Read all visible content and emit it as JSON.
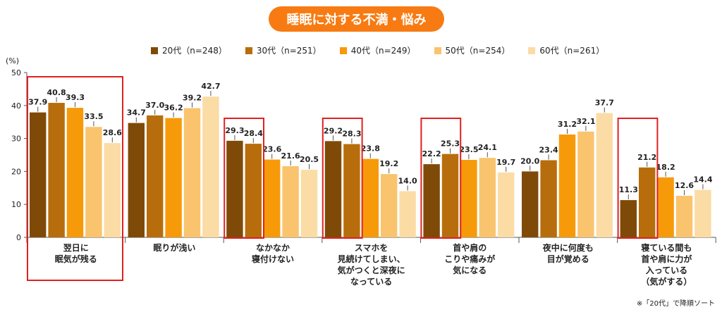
{
  "header": {
    "title": "睡眠に対する不満・悩み"
  },
  "footnote": "※「20代」で降順ソート",
  "chart_data": {
    "type": "bar",
    "title": "睡眠に対する不満・悩み",
    "y_unit": "(%)",
    "ylim": [
      0,
      50
    ],
    "yticks": [
      0,
      10,
      20,
      30,
      40,
      50
    ],
    "grid": false,
    "legend_position": "top",
    "categories": [
      [
        "翌日に",
        "眠気が残る"
      ],
      [
        "眠りが浅い"
      ],
      [
        "なかなか",
        "寝付けない"
      ],
      [
        "スマホを",
        "見続けてしまい、",
        "気がつくと深夜に",
        "なっている"
      ],
      [
        "首や肩の",
        "こりや痛みが",
        "気になる"
      ],
      [
        "夜中に何度も",
        "目が覚める"
      ],
      [
        "寝ている間も",
        "首や肩に力が",
        "入っている",
        "（気がする）"
      ]
    ],
    "series": [
      {
        "name": "20代（n=248）",
        "color": "#7f4a08",
        "values": [
          37.9,
          34.7,
          29.3,
          29.2,
          22.2,
          20.0,
          11.3
        ]
      },
      {
        "name": "30代（n=251）",
        "color": "#b86d0c",
        "values": [
          40.8,
          37.0,
          28.4,
          28.3,
          25.3,
          23.4,
          21.2
        ]
      },
      {
        "name": "40代（n=249）",
        "color": "#f79a0a",
        "values": [
          39.3,
          36.2,
          23.6,
          23.8,
          23.5,
          31.2,
          18.2
        ]
      },
      {
        "name": "50代（n=254）",
        "color": "#f9c46d",
        "values": [
          33.5,
          39.2,
          21.6,
          19.2,
          24.1,
          32.1,
          12.6
        ]
      },
      {
        "name": "60代（n=261）",
        "color": "#fbdca5",
        "values": [
          28.6,
          42.7,
          20.5,
          14.0,
          19.7,
          37.7,
          14.4
        ]
      }
    ],
    "highlight": {
      "color": "#e02020",
      "items": [
        {
          "category": 0,
          "series_from": 0,
          "series_to": 4,
          "include_label": true
        },
        {
          "category": 2,
          "series_from": 0,
          "series_to": 1,
          "include_label": false
        },
        {
          "category": 3,
          "series_from": 0,
          "series_to": 1,
          "include_label": false
        },
        {
          "category": 4,
          "series_from": 0,
          "series_to": 1,
          "include_label": false
        },
        {
          "category": 6,
          "series_from": 0,
          "series_to": 1,
          "include_label": false
        }
      ]
    }
  }
}
